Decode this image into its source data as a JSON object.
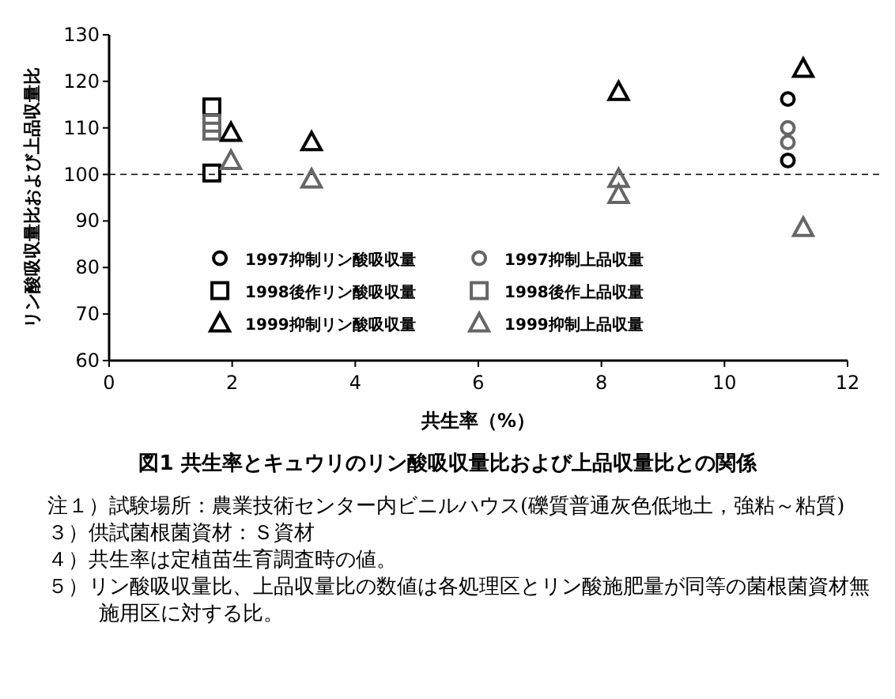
{
  "chart_data": {
    "type": "scatter",
    "title": "図1 共生率とキュウリのリン酸吸収量比および上品収量比との関係",
    "xlabel": "共生率（%）",
    "ylabel": "リン酸吸収量比および上品収量比",
    "xlim": [
      0,
      12
    ],
    "xticks": [
      0,
      2,
      4,
      6,
      8,
      10,
      12
    ],
    "ylim": [
      60,
      130
    ],
    "yticks": [
      60,
      70,
      80,
      90,
      100,
      110,
      120,
      130
    ],
    "legend": "bottom",
    "ref_lines": [
      {
        "axis": "y",
        "value": 100,
        "line_style": "dashed"
      }
    ],
    "series": [
      {
        "name": "1997抑制リン酸吸収量",
        "color": "#000000",
        "marker": "circle",
        "x": [
          11.03,
          11.03
        ],
        "values": [
          116.2,
          103
        ]
      },
      {
        "name": "1997抑制上品収量",
        "color": "#666666",
        "marker": "circle",
        "x": [
          11.03,
          11.03
        ],
        "values": [
          110,
          106.9
        ]
      },
      {
        "name": "1998後作リン酸吸収量",
        "color": "#000000",
        "marker": "square",
        "x": [
          1.67,
          1.67
        ],
        "values": [
          114.5,
          100.3
        ]
      },
      {
        "name": "1998後作上品収量",
        "color": "#666666",
        "marker": "square",
        "x": [
          1.67,
          1.67
        ],
        "values": [
          111,
          109.3
        ]
      },
      {
        "name": "1999抑制リン酸吸収量",
        "color": "#000000",
        "marker": "triangle",
        "x": [
          1.98,
          3.29,
          8.28,
          11.28
        ],
        "values": [
          109,
          107,
          117.8,
          122.8
        ]
      },
      {
        "name": "1999抑制上品収量",
        "color": "#666666",
        "marker": "triangle",
        "x": [
          1.98,
          3.29,
          8.28,
          8.28,
          11.28
        ],
        "values": [
          103,
          99,
          99.1,
          95.7,
          88.6
        ]
      }
    ],
    "annotations": [
      "注１）試験場所：農業技術センター内ビニルハウス(礫質普通灰色低地土，強粘～粘質)",
      "３）供試菌根菌資材：Ｓ資材",
      "４）共生率は定植苗生育調査時の値。",
      "５）リン酸吸収量比、上品収量比の数値は各処理区とリン酸施肥量が同等の菌根菌資材無施用区に対する比。"
    ]
  }
}
